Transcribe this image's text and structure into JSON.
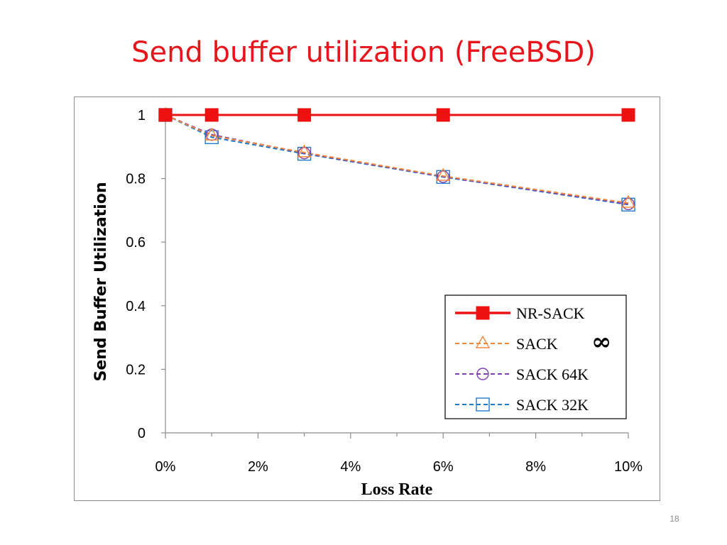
{
  "slide": {
    "title": "Send buffer utilization (FreeBSD)",
    "number": "18"
  },
  "colors": {
    "title": "#e8141b",
    "nr_sack": "#ee1111",
    "sack_inf": "#f0883c",
    "sack_64k": "#7a3fb0",
    "sack_32k": "#1f78c8"
  },
  "chart_data": {
    "type": "line",
    "xlabel": "Loss Rate",
    "ylabel": "Send Buffer Utilization",
    "xlim": [
      0,
      10
    ],
    "ylim": [
      0,
      1
    ],
    "x_ticks": [
      "0%",
      "2%",
      "4%",
      "6%",
      "8%",
      "10%"
    ],
    "y_ticks": [
      "0",
      "0.2",
      "0.4",
      "0.6",
      "0.8",
      "1"
    ],
    "x": [
      0,
      1,
      3,
      6,
      10
    ],
    "legend_position": "lower-right",
    "legend_annotation": "∞",
    "grid": false,
    "series": [
      {
        "name": "NR-SACK",
        "marker": "filled-square",
        "style": "solid",
        "values": [
          1.0,
          1.0,
          1.0,
          1.0,
          1.0
        ]
      },
      {
        "name": "SACK",
        "marker": "triangle",
        "style": "dashed",
        "values": [
          1.0,
          0.935,
          0.882,
          0.808,
          0.723
        ]
      },
      {
        "name": "SACK 64K",
        "marker": "circle",
        "style": "dashed",
        "values": [
          1.0,
          0.938,
          0.88,
          0.806,
          0.72
        ]
      },
      {
        "name": "SACK 32K",
        "marker": "square",
        "style": "dashed",
        "values": [
          1.0,
          0.93,
          0.878,
          0.805,
          0.718
        ]
      }
    ]
  }
}
